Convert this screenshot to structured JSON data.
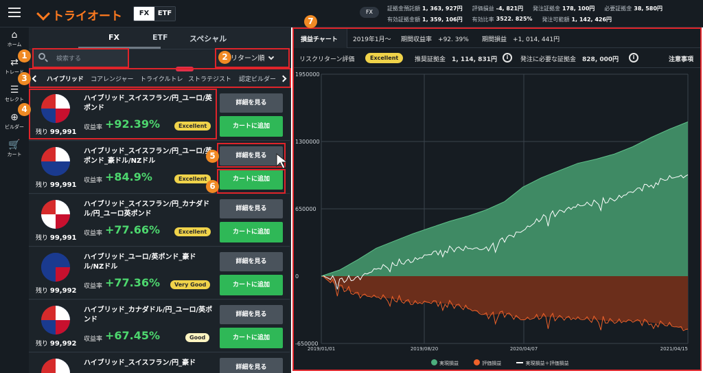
{
  "header": {
    "logo": "トライオート",
    "segments": [
      "FX",
      "ETF"
    ],
    "fx_pill": "FX",
    "account_row1": [
      {
        "label": "証拠金預託額",
        "value": "1, 363, 927円"
      },
      {
        "label": "評価損益",
        "value": "-4, 821円"
      },
      {
        "label": "発注証拠金",
        "value": "178, 100円"
      },
      {
        "label": "必要証拠金",
        "value": "38, 580円"
      }
    ],
    "account_row2": [
      {
        "label": "有効証拠金額",
        "value": "1, 359, 106円"
      },
      {
        "label": "有効比率",
        "value": "3522. 825%"
      },
      {
        "label": "発注可能額",
        "value": "1, 142, 426円"
      }
    ]
  },
  "sidebar": {
    "items": [
      {
        "icon": "home-icon",
        "label": "ホーム"
      },
      {
        "icon": "trade-icon",
        "label": "トレード"
      },
      {
        "icon": "select-icon",
        "label": "セレクト"
      },
      {
        "icon": "builder-icon",
        "label": "ビルダー"
      },
      {
        "icon": "cart-icon",
        "label": "カート"
      }
    ]
  },
  "panel": {
    "tabs": [
      "FX",
      "ETF",
      "スペシャル"
    ],
    "search_placeholder": "検索する",
    "sort_label": "リターン順",
    "categories": [
      "ハイブリッド",
      "コアレンジャー",
      "トライクルトレ",
      "ストラテジスト",
      "認定ビルダー"
    ],
    "detail_label": "詳細を見る",
    "cart_label": "カートに追加",
    "return_label": "収益率",
    "remain_label": "残り",
    "cards": [
      {
        "name": "ハイブリッド_スイスフラン/円_ユーロ/英ポンド",
        "return": "+92.39%",
        "eval": "Excellent",
        "remain": "99,991"
      },
      {
        "name": "ハイブリッド_スイスフラン/円_ユーロ/英ポンド_豪ドル/NZドル",
        "return": "+84.9%",
        "eval": "Excellent",
        "remain": "99,991"
      },
      {
        "name": "ハイブリッド_スイスフラン/円_カナダドル/円_ユーロ英ポンド",
        "return": "+77.66%",
        "eval": "Excellent",
        "remain": "99,991"
      },
      {
        "name": "ハイブリッド_ユーロ/英ポンド_豪ドル/NZドル",
        "return": "+77.36%",
        "eval": "Very Good",
        "remain": "99,992"
      },
      {
        "name": "ハイブリッド_カナダドル/円_ユーロ/英ポンド",
        "return": "+67.45%",
        "eval": "Good",
        "remain": "99,992"
      },
      {
        "name": "ハイブリッド_スイスフラン/円_豪ド",
        "return": "",
        "eval": "",
        "remain": ""
      }
    ]
  },
  "chart_panel": {
    "tab_label": "損益チャート",
    "period": "2019年1月〜",
    "period_return_label": "期間収益率",
    "period_return": "+92. 39%",
    "period_pl_label": "期間損益",
    "period_pl": "+1, 014, 441円",
    "risk_label": "リスクリターン評価",
    "risk_badge": "Excellent",
    "rec_margin_label": "推奨証拠金",
    "rec_margin": "1, 114, 831円",
    "order_margin_label": "発注に必要な証拠金",
    "order_margin": "828, 000円",
    "notes": "注意事項"
  },
  "annotations": [
    "1",
    "2",
    "3",
    "4",
    "5",
    "6",
    "7"
  ],
  "colors": {
    "realized": "#3f9a6b",
    "unrealized": "#f0622a",
    "total": "#ffffff",
    "accent": "#ff7a1f",
    "buy": "#2fb857"
  },
  "chart_data": {
    "type": "area",
    "x_ticks": [
      "2019/01/01",
      "2019/08/20",
      "2020/04/07",
      "2021/04/15"
    ],
    "y_ticks": [
      "1950000",
      "1300000",
      "650000",
      "0",
      "-650000"
    ],
    "ylim": [
      -650000,
      1950000
    ],
    "series": [
      {
        "name": "実現損益",
        "values": [
          0,
          60000,
          160000,
          270000,
          340000,
          410000,
          470000,
          530000,
          580000,
          640000,
          720000,
          860000,
          950000,
          1020000,
          1090000,
          1130000,
          1180000,
          1250000,
          1340000,
          1420000,
          1490000
        ]
      },
      {
        "name": "評価損益",
        "values": [
          0,
          -100000,
          -180000,
          -200000,
          -220000,
          -260000,
          -250000,
          -270000,
          -310000,
          -380000,
          -360000,
          -420000,
          -390000,
          -400000,
          -410000,
          -420000,
          -440000,
          -430000,
          -450000,
          -470000,
          -520000
        ]
      },
      {
        "name": "実現損益＋評価損益",
        "values": [
          0,
          -40000,
          -20000,
          70000,
          120000,
          150000,
          220000,
          260000,
          270000,
          260000,
          360000,
          440000,
          560000,
          620000,
          680000,
          710000,
          740000,
          820000,
          890000,
          950000,
          970000
        ]
      }
    ],
    "legend": [
      "実現損益",
      "評価損益",
      "実現損益＋評価損益"
    ]
  }
}
